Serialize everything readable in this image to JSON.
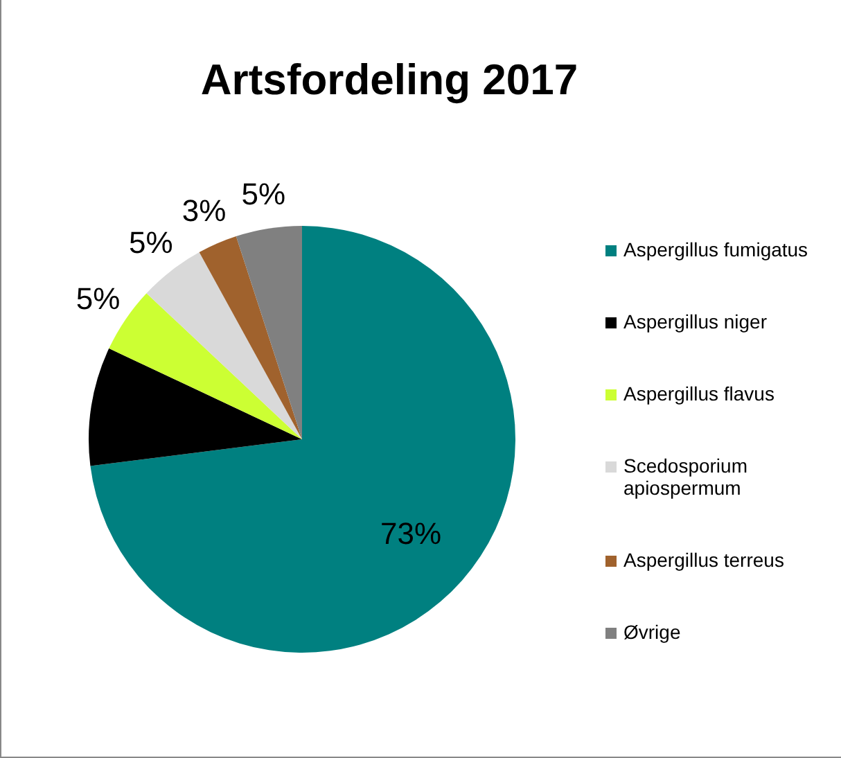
{
  "chart_data": {
    "type": "pie",
    "title": "Artsfordeling 2017",
    "categories": [
      "Aspergillus fumigatus",
      "Aspergillus niger",
      "Aspergillus flavus",
      "Scedosporium apiospermum",
      "Aspergillus terreus",
      "Øvrige"
    ],
    "values": [
      73,
      9,
      5,
      5,
      3,
      5
    ],
    "colors": [
      "#008080",
      "#000000",
      "#ccff33",
      "#d9d9d9",
      "#a0622d",
      "#808080"
    ],
    "value_labels": [
      "73%",
      null,
      "5%",
      "5%",
      "3%",
      "5%"
    ],
    "legend": "right"
  }
}
